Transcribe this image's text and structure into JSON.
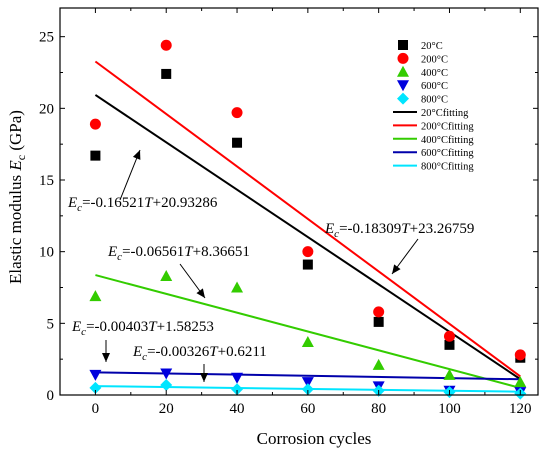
{
  "chart_data": {
    "type": "scatter",
    "xlabel": "Corrosion cycles",
    "ylabel": {
      "prefix": "Elastic modulus ",
      "italic": "E",
      "sub": "c",
      "suffix": " (GPa)"
    },
    "xlim": [
      -10,
      125
    ],
    "ylim": [
      0,
      27
    ],
    "xticks": [
      0,
      20,
      40,
      60,
      80,
      100,
      120
    ],
    "yticks": [
      0,
      5,
      10,
      15,
      20,
      25
    ],
    "x": [
      0,
      20,
      40,
      60,
      80,
      100,
      120
    ],
    "series": [
      {
        "name": "20°C",
        "marker": "square",
        "color": "#000000",
        "values": [
          16.7,
          22.4,
          17.6,
          9.1,
          5.1,
          3.5,
          2.6
        ]
      },
      {
        "name": "200°C",
        "marker": "circle",
        "color": "#ff0000",
        "values": [
          18.9,
          24.4,
          19.7,
          10.0,
          5.8,
          4.1,
          2.8
        ]
      },
      {
        "name": "400°C",
        "marker": "triangle-up",
        "color": "#33cc00",
        "values": [
          6.9,
          8.3,
          7.5,
          3.7,
          2.1,
          1.4,
          0.9
        ]
      },
      {
        "name": "600°C",
        "marker": "triangle-down",
        "color": "#0000dd",
        "values": [
          1.4,
          1.5,
          1.2,
          0.9,
          0.6,
          0.3,
          0.2
        ]
      },
      {
        "name": "800°C",
        "marker": "diamond",
        "color": "#00e5ff",
        "values": [
          0.5,
          0.7,
          0.4,
          0.4,
          0.3,
          0.2,
          0.1
        ]
      }
    ],
    "fits": [
      {
        "name": "20°Cfitting",
        "color": "#000000",
        "slope": -0.16521,
        "intercept": 20.93286
      },
      {
        "name": "200°Cfitting",
        "color": "#ff0000",
        "slope": -0.18309,
        "intercept": 23.26759
      },
      {
        "name": "400°Cfitting",
        "color": "#33cc00",
        "slope": -0.06561,
        "intercept": 8.36651
      },
      {
        "name": "600°Cfitting",
        "color": "#0000aa",
        "slope": -0.00403,
        "intercept": 1.58253
      },
      {
        "name": "800°Cfitting",
        "color": "#00e5ff",
        "slope": -0.00326,
        "intercept": 0.6211
      }
    ],
    "annotations": [
      {
        "eq": "=-0.16521T+20.93286",
        "base": "-0.16521",
        "t": "T",
        "rest": "+20.93286"
      },
      {
        "eq": "=-0.18309T+23.26759",
        "base": "-0.18309",
        "t": "T",
        "rest": "+23.26759"
      },
      {
        "eq": "=-0.06561T+8.36651",
        "base": "-0.06561",
        "t": "T",
        "rest": "+8.36651"
      },
      {
        "eq": "=-0.00403T+1.58253",
        "base": "-0.00403",
        "t": "T",
        "rest": "+1.58253"
      },
      {
        "eq": "=-0.00326T+0.6211",
        "base": "-0.00326",
        "t": "T",
        "rest": "+0.6211"
      }
    ],
    "legend_position": "top-right",
    "grid": false
  }
}
